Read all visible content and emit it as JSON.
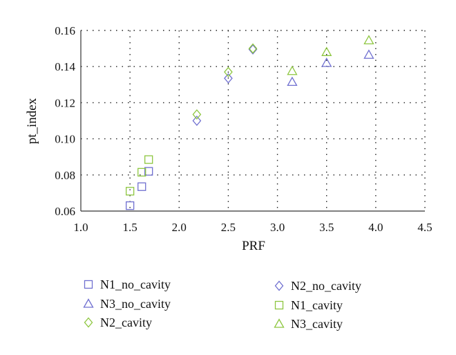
{
  "chart_data": {
    "type": "scatter",
    "title": "",
    "xlabel": "PRF",
    "ylabel": "pt_index",
    "xlim": [
      1.0,
      4.5
    ],
    "ylim": [
      0.06,
      0.16
    ],
    "xticks": [
      "1.0",
      "1.5",
      "2.0",
      "2.5",
      "3.0",
      "3.5",
      "4.0",
      "4.5"
    ],
    "yticks": [
      "0.06",
      "0.08",
      "0.10",
      "0.12",
      "0.14",
      "0.16"
    ],
    "grid": "dotted",
    "legend_position": "bottom",
    "series": [
      {
        "name": "N1_no_cavity",
        "marker": "square",
        "color": "#6f6fd0",
        "x": [
          1.5,
          1.62,
          1.69
        ],
        "y": [
          0.063,
          0.0735,
          0.082
        ]
      },
      {
        "name": "N2_no_cavity",
        "marker": "diamond",
        "color": "#6f6fd0",
        "x": [
          2.18,
          2.5,
          2.75
        ],
        "y": [
          0.11,
          0.1335,
          0.1495
        ]
      },
      {
        "name": "N3_no_cavity",
        "marker": "triangle",
        "color": "#6f6fd0",
        "x": [
          3.15,
          3.5,
          3.93
        ],
        "y": [
          0.1315,
          0.142,
          0.1465
        ]
      },
      {
        "name": "N1_cavity",
        "marker": "square",
        "color": "#8dc63f",
        "x": [
          1.5,
          1.62,
          1.69
        ],
        "y": [
          0.071,
          0.0815,
          0.0885
        ]
      },
      {
        "name": "N2_cavity",
        "marker": "diamond",
        "color": "#8dc63f",
        "x": [
          2.18,
          2.5,
          2.75
        ],
        "y": [
          0.1135,
          0.137,
          0.15
        ]
      },
      {
        "name": "N3_cavity",
        "marker": "triangle",
        "color": "#8dc63f",
        "x": [
          3.15,
          3.5,
          3.93
        ],
        "y": [
          0.1375,
          0.148,
          0.1545
        ]
      }
    ],
    "legend": {
      "columns": [
        [
          "N1_no_cavity",
          "N3_no_cavity",
          "N2_cavity"
        ],
        [
          "N2_no_cavity",
          "N1_cavity",
          "N3_cavity"
        ]
      ]
    }
  }
}
